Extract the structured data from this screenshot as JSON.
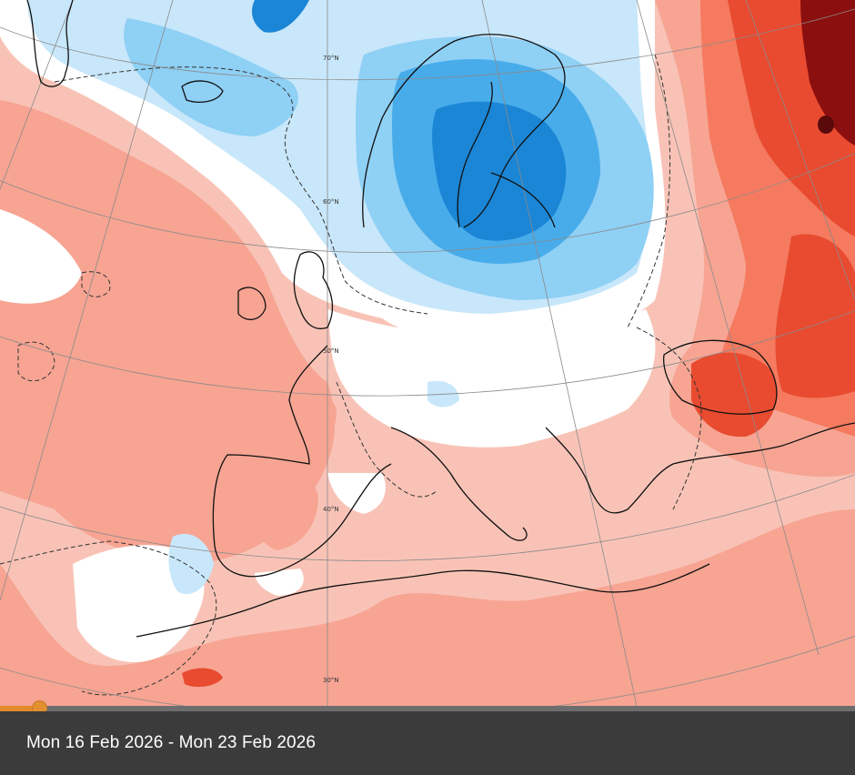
{
  "map": {
    "colors": {
      "deep_red": "#8c0f0f",
      "strong_red": "#e84b30",
      "mid_red": "#f57a5f",
      "light_red": "#f7a493",
      "pale_red": "#f8c3b6",
      "neutral": "#ffffff",
      "pale_blue": "#c8e7fa",
      "light_blue": "#8fd0f5",
      "mid_blue": "#49acea",
      "strong_blue": "#1b86d6",
      "deep_blue": "#0e5fa8"
    },
    "latitude_labels": [
      "70°N",
      "60°N",
      "50°N",
      "40°N",
      "30°N"
    ]
  },
  "timeline": {
    "progress_percent": 4.6
  },
  "caption": {
    "date_range": "Mon 16 Feb 2026 - Mon 23 Feb 2026"
  }
}
